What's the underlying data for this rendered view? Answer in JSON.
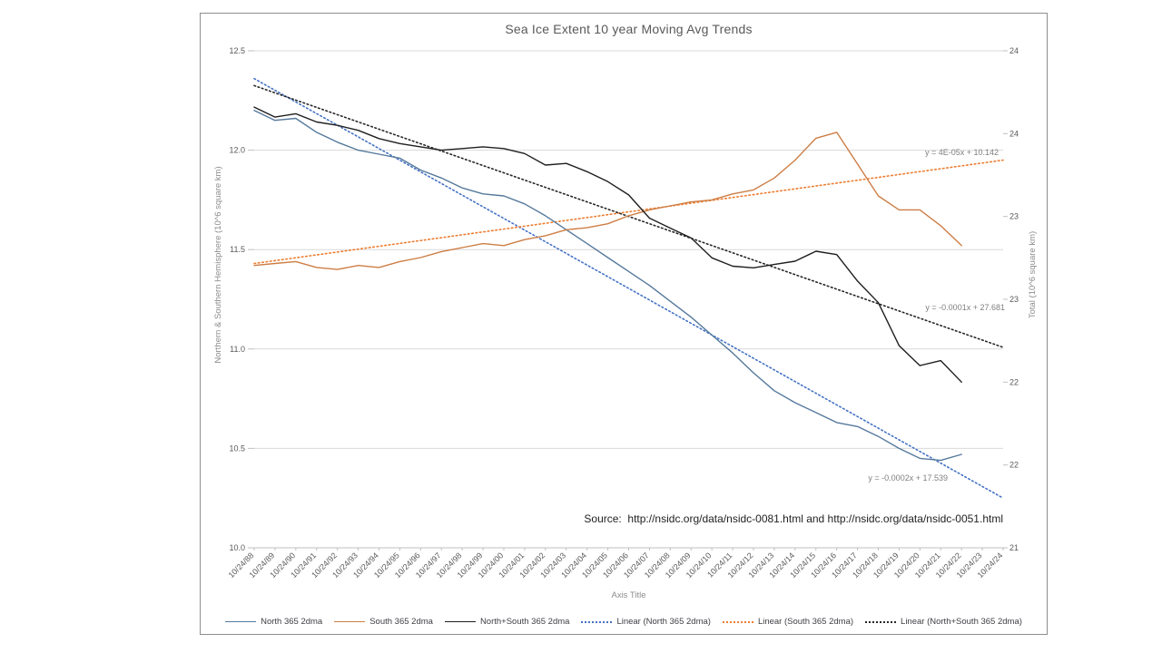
{
  "chart_data": {
    "type": "line",
    "title": "Sea Ice Extent 10 year Moving Avg Trends",
    "x_axis_title": "Axis Title",
    "source_note": "Source:  http://nsidc.org/data/nsidc-0081.html and http://nsidc.org/data/nsidc-0051.html",
    "x_tick_labels": [
      "10/24/88",
      "10/24/89",
      "10/24/90",
      "10/24/91",
      "10/24/92",
      "10/24/93",
      "10/24/94",
      "10/24/95",
      "10/24/96",
      "10/24/97",
      "10/24/98",
      "10/24/99",
      "10/24/00",
      "10/24/01",
      "10/24/02",
      "10/24/03",
      "10/24/04",
      "10/24/05",
      "10/24/06",
      "10/24/07",
      "10/24/08",
      "10/24/09",
      "10/24/10",
      "10/24/11",
      "10/24/12",
      "10/24/13",
      "10/24/14",
      "10/24/15",
      "10/24/16",
      "10/24/17",
      "10/24/18",
      "10/24/19",
      "10/24/20",
      "10/24/21",
      "10/24/22",
      "10/24/23",
      "10/24/24"
    ],
    "y_left": {
      "title": "Northern & Southern Hemisphere (10^6 square km)",
      "min": 10.0,
      "max": 12.5,
      "ticks": [
        12.5,
        12.0,
        11.5,
        11.0,
        10.5,
        10.0
      ]
    },
    "y_right": {
      "title": "Total (10^6 square km)",
      "min": 21,
      "max": 24,
      "tick_labels": [
        "24",
        "24",
        "23",
        "23",
        "22",
        "22",
        "21"
      ]
    },
    "grid": "horizontal-only",
    "legend_position": "bottom",
    "style": {
      "grid_color": "#d9d9d9",
      "axis_color": "#bfbfbf",
      "tick_text_color": "#595959",
      "axis_title_color": "#8c8c8c",
      "chart_border_color": "#8e8e8e"
    },
    "series": [
      {
        "name": "North 365 2dma",
        "axis": "left",
        "style": "solid",
        "color": "#55799c",
        "values": [
          12.2,
          12.15,
          12.16,
          12.09,
          12.04,
          12.0,
          11.98,
          11.96,
          11.9,
          11.86,
          11.81,
          11.78,
          11.77,
          11.73,
          11.67,
          11.6,
          11.53,
          11.46,
          11.39,
          11.32,
          11.24,
          11.16,
          11.07,
          10.98,
          10.88,
          10.79,
          10.73,
          10.68,
          10.63,
          10.61,
          10.56,
          10.5,
          10.45,
          10.44,
          10.47
        ]
      },
      {
        "name": "South 365 2dma",
        "axis": "left",
        "style": "solid",
        "color": "#cd7e45",
        "values": [
          11.42,
          11.43,
          11.44,
          11.41,
          11.4,
          11.42,
          11.41,
          11.44,
          11.46,
          11.49,
          11.51,
          11.53,
          11.52,
          11.55,
          11.57,
          11.6,
          11.61,
          11.63,
          11.67,
          11.7,
          11.72,
          11.74,
          11.75,
          11.78,
          11.8,
          11.86,
          11.95,
          12.06,
          12.09,
          11.93,
          11.77,
          11.7,
          11.7,
          11.62,
          11.52
        ]
      },
      {
        "name": "North+South 365 2dma",
        "axis": "right",
        "style": "solid",
        "color": "#1f1f1f",
        "values": [
          23.66,
          23.6,
          23.62,
          23.57,
          23.55,
          23.52,
          23.47,
          23.44,
          23.42,
          23.4,
          23.41,
          23.42,
          23.41,
          23.38,
          23.31,
          23.32,
          23.27,
          23.21,
          23.13,
          22.99,
          22.93,
          22.87,
          22.75,
          22.7,
          22.69,
          22.71,
          22.73,
          22.79,
          22.77,
          22.61,
          22.48,
          22.22,
          22.1,
          22.13,
          22.0
        ]
      },
      {
        "name": "Linear (North 365 2dma)",
        "axis": "left",
        "style": "dotted",
        "color": "#4472c4",
        "trend": {
          "start": 12.36,
          "end": 10.25
        },
        "equation": "y = -0.0002x + 17.539"
      },
      {
        "name": "Linear (South 365 2dma)",
        "axis": "left",
        "style": "dotted",
        "color": "#ed7d31",
        "trend": {
          "start": 11.43,
          "end": 11.95
        },
        "equation": "y = 4E-05x + 10.142"
      },
      {
        "name": "Linear (North+South 365 2dma)",
        "axis": "right",
        "style": "dotted",
        "color": "#262626",
        "trend": {
          "start": 23.79,
          "end": 22.21
        },
        "equation": "y = -0.0001x + 27.681"
      }
    ]
  }
}
